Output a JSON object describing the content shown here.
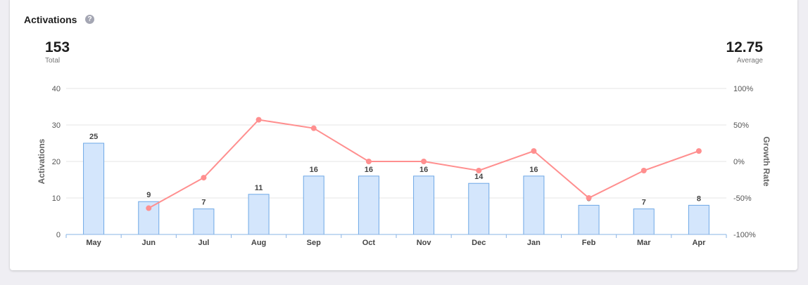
{
  "header": {
    "title": "Activations",
    "help_icon": "question-circle-icon"
  },
  "stats": {
    "total": {
      "value": "153",
      "label": "Total"
    },
    "average": {
      "value": "12.75",
      "label": "Average"
    }
  },
  "chart_data": {
    "type": "bar+line",
    "categories": [
      "May",
      "Jun",
      "Jul",
      "Aug",
      "Sep",
      "Oct",
      "Nov",
      "Dec",
      "Jan",
      "Feb",
      "Mar",
      "Apr"
    ],
    "series": [
      {
        "type": "bar",
        "axis": "left",
        "values": [
          25,
          9,
          7,
          11,
          16,
          16,
          16,
          14,
          16,
          8,
          7,
          8
        ],
        "color": "#d4e6fc",
        "stroke": "#6ea8e6"
      },
      {
        "type": "line",
        "axis": "right",
        "values": [
          null,
          -64,
          -22.2,
          57.1,
          45.5,
          0,
          0,
          -12.5,
          14.3,
          -50,
          -12.5,
          14.3
        ],
        "color": "#ff8f8f"
      }
    ],
    "ylabel": "Activations",
    "y2label": "Growth Rate",
    "ylim": [
      0,
      40
    ],
    "yticks": [
      "0",
      "10",
      "20",
      "30",
      "40"
    ],
    "y2lim": [
      -100,
      100
    ],
    "y2ticks": [
      "-100%",
      "-50%",
      "0%",
      "50%",
      "100%"
    ],
    "grid": true
  }
}
